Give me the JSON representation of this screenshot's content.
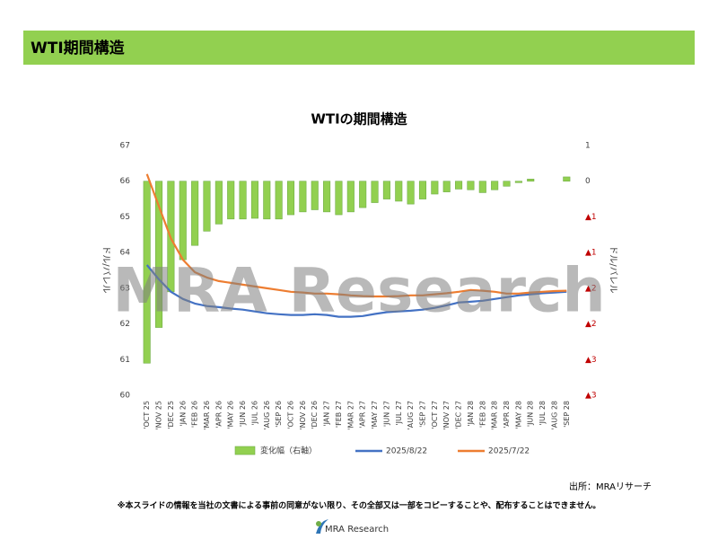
{
  "header": {
    "title": "WTI期間構造"
  },
  "chart_data": {
    "type": "bar-line",
    "title": "WTIの期間構造",
    "y_label": "ドル/バレル",
    "y2_label": "ドル/バレル",
    "categories": [
      "'OCT 25",
      "'NOV 25",
      "'DEC 25",
      "'JAN 26",
      "'FEB 26",
      "'MAR 26",
      "'APR 26",
      "'MAY 26",
      "'JUN 26",
      "'JUL 26",
      "'AUG 26",
      "'SEP 26",
      "'OCT 26",
      "'NOV 26",
      "'DEC 26",
      "'JAN 27",
      "'FEB 27",
      "'MAR 27",
      "'APR 27",
      "'MAY 27",
      "'JUN 27",
      "'JUL 27",
      "'AUG 27",
      "'SEP 27",
      "'OCT 27",
      "'NOV 27",
      "'DEC 27",
      "'JAN 28",
      "'FEB 28",
      "'MAR 28",
      "'APR 28",
      "'MAY 28",
      "'JUN 28",
      "'JUL 28",
      "'AUG 28",
      "'SEP 28"
    ],
    "series": [
      {
        "name": "変化幅（右軸）",
        "type": "bar",
        "axis": "y2",
        "color": "#92d050",
        "values": [
          -2.55,
          -2.05,
          -1.55,
          -1.1,
          -0.9,
          -0.7,
          -0.6,
          -0.53,
          -0.53,
          -0.52,
          -0.53,
          -0.53,
          -0.47,
          -0.43,
          -0.4,
          -0.43,
          -0.47,
          -0.43,
          -0.37,
          -0.3,
          -0.25,
          -0.28,
          -0.32,
          -0.25,
          -0.18,
          -0.15,
          -0.11,
          -0.12,
          -0.16,
          -0.12,
          -0.07,
          -0.02,
          0.03,
          0,
          0,
          0.06
        ]
      },
      {
        "name": "2025/8/22",
        "type": "line",
        "color": "#4472c4",
        "values": [
          63.65,
          63.25,
          62.9,
          62.7,
          62.57,
          62.5,
          62.47,
          62.43,
          62.4,
          62.35,
          62.3,
          62.27,
          62.25,
          62.25,
          62.27,
          62.25,
          62.2,
          62.2,
          62.22,
          62.28,
          62.33,
          62.35,
          62.37,
          62.4,
          62.45,
          62.52,
          62.6,
          62.62,
          62.65,
          62.7,
          62.75,
          62.8,
          62.83,
          62.86,
          62.88,
          62.9
        ]
      },
      {
        "name": "2025/7/22",
        "type": "line",
        "color": "#ed7d31",
        "values": [
          66.2,
          65.3,
          64.4,
          63.8,
          63.45,
          63.3,
          63.2,
          63.15,
          63.1,
          63.05,
          63.0,
          62.95,
          62.9,
          62.88,
          62.85,
          62.85,
          62.83,
          62.8,
          62.78,
          62.77,
          62.77,
          62.78,
          62.8,
          62.8,
          62.83,
          62.86,
          62.9,
          62.95,
          62.93,
          62.9,
          62.85,
          62.85,
          62.88,
          62.9,
          62.92,
          62.93
        ]
      }
    ],
    "ylim": [
      60,
      67
    ],
    "yticks": [
      60,
      61,
      62,
      63,
      64,
      65,
      66,
      67
    ],
    "y2lim": [
      -3,
      0.5
    ],
    "y2ticks": [
      {
        "value": -3,
        "label": "▲3"
      },
      {
        "value": -2.5,
        "label": "▲3"
      },
      {
        "value": -2,
        "label": "▲2"
      },
      {
        "value": -1.5,
        "label": "▲2"
      },
      {
        "value": -1,
        "label": "▲1"
      },
      {
        "value": -0.5,
        "label": "▲1"
      },
      0,
      {
        "value": 0.5,
        "label": "1"
      }
    ],
    "grid": false,
    "legend": "bottom"
  },
  "watermark": "MRA Research",
  "source": "出所：MRAリサーチ",
  "disclaimer": "※本スライドの情報を当社の文書による事前の同意がない限り、その全部又は一部をコピーすることや、配布することはできません。",
  "logo_text": "MRA Research"
}
